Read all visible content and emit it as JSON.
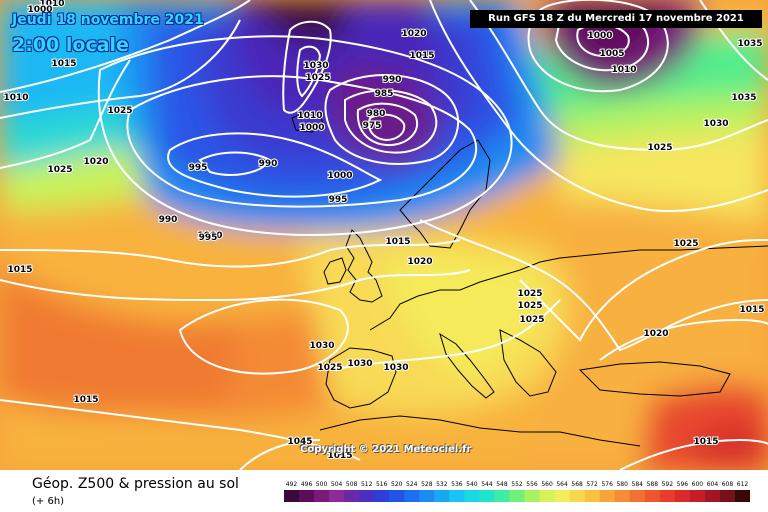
{
  "header": {
    "valid_date": "Jeudi 18 novembre 2021",
    "valid_time": "2:00 locale",
    "run": "Run GFS 18 Z du Mercredi 17 novembre 2021"
  },
  "footer": {
    "title": "Géop. Z500 & pression au sol",
    "subtitle": "(+ 6h)",
    "copyright": "Copyright © 2021 Meteociel.fr"
  },
  "legend": {
    "values": [
      "492",
      "496",
      "500",
      "504",
      "508",
      "512",
      "516",
      "520",
      "524",
      "528",
      "532",
      "536",
      "540",
      "544",
      "548",
      "552",
      "556",
      "560",
      "564",
      "568",
      "572",
      "576",
      "580",
      "584",
      "588",
      "592",
      "596",
      "600",
      "604",
      "608",
      "612"
    ],
    "colors": [
      "#3b0a3a",
      "#5b0d5c",
      "#7a1a7c",
      "#8e2a9a",
      "#6a2aa8",
      "#4a30c0",
      "#2f3fd6",
      "#2255e6",
      "#1a70ee",
      "#1a8cf2",
      "#1aa8f4",
      "#1ac4f2",
      "#1ad8e4",
      "#20e4c8",
      "#40eca0",
      "#70f07a",
      "#a6f260",
      "#d4f25a",
      "#f0ee5a",
      "#f8d850",
      "#fac040",
      "#f8a63a",
      "#f68c36",
      "#f27032",
      "#ee562e",
      "#e83c2c",
      "#da2a2a",
      "#c41e28",
      "#a01622",
      "#781018",
      "#3a0808"
    ]
  },
  "isobars": [
    "1010",
    "1000",
    "1015",
    "1010",
    "1015",
    "1025",
    "1025",
    "1020",
    "1030",
    "1025",
    "1020",
    "1015",
    "995",
    "990",
    "990",
    "1010",
    "1000",
    "1000",
    "990",
    "985",
    "980",
    "975",
    "1000",
    "995",
    "995",
    "1015",
    "1020",
    "1000",
    "1005",
    "1010",
    "1035",
    "1035",
    "1030",
    "1025",
    "1025",
    "1025",
    "1025",
    "1025",
    "1020",
    "1030",
    "1030",
    "1025",
    "1030",
    "1015",
    "1015",
    "1045",
    "1015",
    "1015"
  ]
}
